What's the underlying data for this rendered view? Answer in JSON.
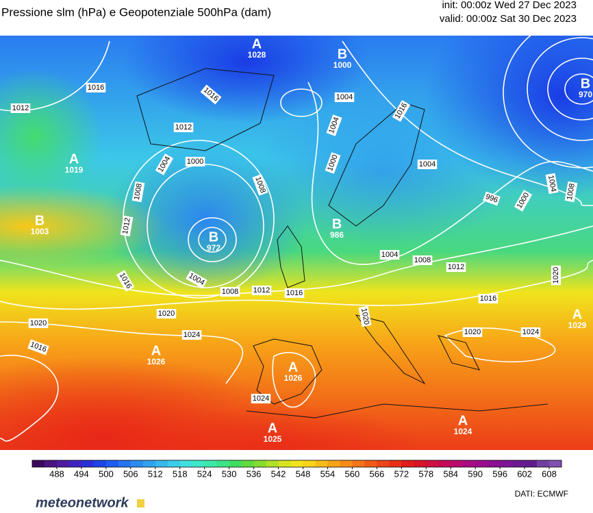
{
  "header": {
    "title": "Pressione slm (hPa) e Geopotenziale 500hPa (dam)",
    "init": "init: 00:00z Wed 27 Dec 2023",
    "valid": "valid: 00:00z Sat 30 Dec 2023"
  },
  "map": {
    "centers": [
      {
        "kind": "A",
        "value": 1028
      },
      {
        "kind": "B",
        "value": 1000
      },
      {
        "kind": "B",
        "value": 970
      },
      {
        "kind": "A",
        "value": 1019
      },
      {
        "kind": "B",
        "value": 1003
      },
      {
        "kind": "B",
        "value": 972
      },
      {
        "kind": "B",
        "value": 986
      },
      {
        "kind": "A",
        "value": 1026
      },
      {
        "kind": "A",
        "value": 1026
      },
      {
        "kind": "A",
        "value": 1025
      },
      {
        "kind": "A",
        "value": 1024
      },
      {
        "kind": "A",
        "value": 1029
      }
    ],
    "isobar_labels": [
      1016,
      1012,
      1016,
      1012,
      1004,
      1000,
      1008,
      1012,
      1016,
      1004,
      1008,
      1012,
      1016,
      1008,
      1004,
      1004,
      1000,
      1016,
      1004,
      996,
      1000,
      1004,
      1008,
      1004,
      1008,
      1012,
      1016,
      1020,
      1020,
      1016,
      1020,
      1024,
      1020,
      1020,
      1024,
      1024
    ]
  },
  "colorbar": {
    "range": [
      482,
      611
    ],
    "ticks": [
      488,
      494,
      500,
      506,
      512,
      518,
      524,
      530,
      536,
      542,
      548,
      554,
      560,
      566,
      572,
      578,
      584,
      590,
      596,
      602,
      608
    ],
    "colors": [
      "#3b0a5c",
      "#4a1480",
      "#4f1ca0",
      "#3d24c0",
      "#2a30d8",
      "#1f45e6",
      "#1e5cf0",
      "#2575f2",
      "#2b8cf0",
      "#31a2ee",
      "#38b8ec",
      "#3ccde8",
      "#40e0e0",
      "#3ee8c8",
      "#3ce8a8",
      "#3ce488",
      "#40de60",
      "#60dc3c",
      "#88dc30",
      "#b0e028",
      "#d8e420",
      "#f2e41c",
      "#f8d41a",
      "#f8bc18",
      "#f8a418",
      "#f88c18",
      "#f47418",
      "#f05c18",
      "#ec4418",
      "#e83018",
      "#e01c1c",
      "#d81428",
      "#d01040",
      "#c40c58",
      "#b80c70",
      "#a80c80",
      "#9a0c8c",
      "#8c1090",
      "#7c1494",
      "#6c1890",
      "#601c8c",
      "#7040a0",
      "#8050b0"
    ]
  },
  "footer": {
    "logo": "meteonetwork",
    "source": "DATI: ECMWF"
  }
}
